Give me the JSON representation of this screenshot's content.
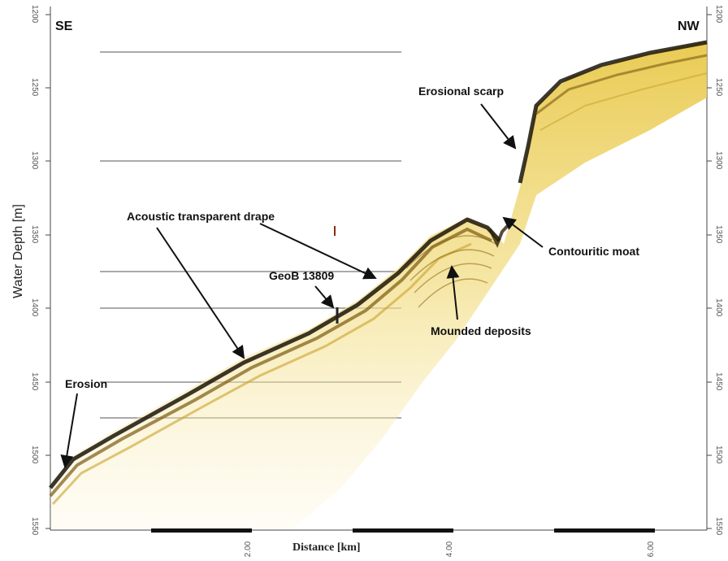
{
  "labels": {
    "se": "SE",
    "nw": "NW",
    "erosional_scarp": "Erosional scarp",
    "acoustic_drape": "Acoustic transparent drape",
    "geob_core": "GeoB 13809",
    "contouritic_moat": "Contouritic moat",
    "mounded_deposits": "Mounded deposits",
    "erosion": "Erosion"
  },
  "axes": {
    "y_title": "Water Depth [m]",
    "x_title": "Distance [km]",
    "y_ticks_left": [
      "1200",
      "1250",
      "1300",
      "1350",
      "1400",
      "1450",
      "1500",
      "1550"
    ],
    "y_ticks_right": [
      "1200",
      "1250",
      "1300",
      "1350",
      "1400",
      "1450",
      "1500",
      "1550"
    ],
    "x_ticks": [
      "2.00",
      "4.00",
      "6.00"
    ]
  },
  "colors": {
    "reflector_dark": "#1a1408",
    "reflector_mid": "#7a5a10",
    "reflector_light": "#e8c84a",
    "reflector_pale": "#f6e9a8",
    "grid_line": "#555555",
    "arrow": "#111111"
  }
}
